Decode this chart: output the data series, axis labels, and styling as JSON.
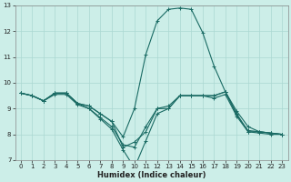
{
  "xlabel": "Humidex (Indice chaleur)",
  "bg_color": "#cceee8",
  "grid_color": "#aad8d2",
  "line_color": "#1a6b64",
  "xlim": [
    -0.5,
    23.5
  ],
  "ylim": [
    7,
    13
  ],
  "xticks": [
    0,
    1,
    2,
    3,
    4,
    5,
    6,
    7,
    8,
    9,
    10,
    11,
    12,
    13,
    14,
    15,
    16,
    17,
    18,
    19,
    20,
    21,
    22,
    23
  ],
  "yticks": [
    7,
    8,
    9,
    10,
    11,
    12,
    13
  ],
  "lines": [
    [
      9.6,
      9.5,
      9.3,
      9.6,
      9.6,
      9.2,
      9.1,
      8.8,
      8.5,
      7.5,
      7.7,
      8.1,
      9.0,
      9.1,
      9.5,
      9.5,
      9.5,
      9.5,
      9.65,
      8.9,
      8.3,
      8.1,
      8.05,
      8.0
    ],
    [
      9.6,
      9.5,
      9.3,
      9.6,
      9.6,
      9.2,
      9.1,
      8.8,
      8.5,
      7.9,
      9.0,
      11.1,
      12.4,
      12.85,
      12.9,
      12.85,
      11.95,
      10.65,
      9.65,
      8.75,
      8.15,
      8.1,
      8.05,
      8.0
    ],
    [
      9.6,
      9.5,
      9.3,
      9.6,
      9.6,
      9.2,
      9.0,
      8.6,
      8.2,
      7.4,
      6.7,
      7.75,
      8.8,
      9.0,
      9.5,
      9.5,
      9.5,
      9.5,
      9.65,
      8.8,
      8.1,
      8.1,
      8.05,
      8.0
    ],
    [
      9.6,
      9.5,
      9.3,
      9.55,
      9.55,
      9.15,
      9.0,
      8.65,
      8.3,
      7.6,
      7.5,
      8.3,
      9.0,
      9.0,
      9.5,
      9.5,
      9.5,
      9.4,
      9.55,
      8.7,
      8.1,
      8.05,
      8.0,
      8.0
    ]
  ]
}
